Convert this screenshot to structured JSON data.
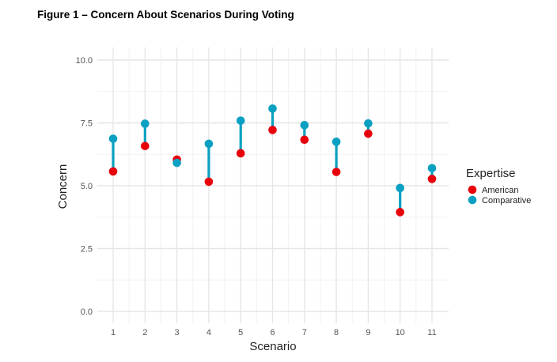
{
  "chart_data": {
    "type": "dumbbell",
    "title": "Figure 1 – Concern About Scenarios During Voting",
    "xlabel": "Scenario",
    "ylabel": "Concern",
    "categories": [
      "1",
      "2",
      "3",
      "4",
      "5",
      "6",
      "7",
      "8",
      "9",
      "10",
      "11"
    ],
    "series": [
      {
        "name": "American",
        "color": "#e8000b",
        "values": [
          5.57,
          6.58,
          6.04,
          5.16,
          6.29,
          7.22,
          6.83,
          5.55,
          7.07,
          3.95,
          5.27
        ]
      },
      {
        "name": "Comparative",
        "color": "#0aa0c2",
        "values": [
          6.87,
          7.47,
          5.91,
          6.67,
          7.59,
          8.07,
          7.41,
          6.75,
          7.48,
          4.91,
          5.7
        ]
      }
    ],
    "segment_color": "#0aa0c2",
    "ylim": [
      0,
      10
    ],
    "yticks": [
      "0.0",
      "2.5",
      "5.0",
      "7.5",
      "10.0"
    ],
    "ytick_values": [
      0,
      2.5,
      5,
      7.5,
      10
    ],
    "grid": true,
    "legend": {
      "title": "Expertise",
      "position": "right"
    }
  }
}
